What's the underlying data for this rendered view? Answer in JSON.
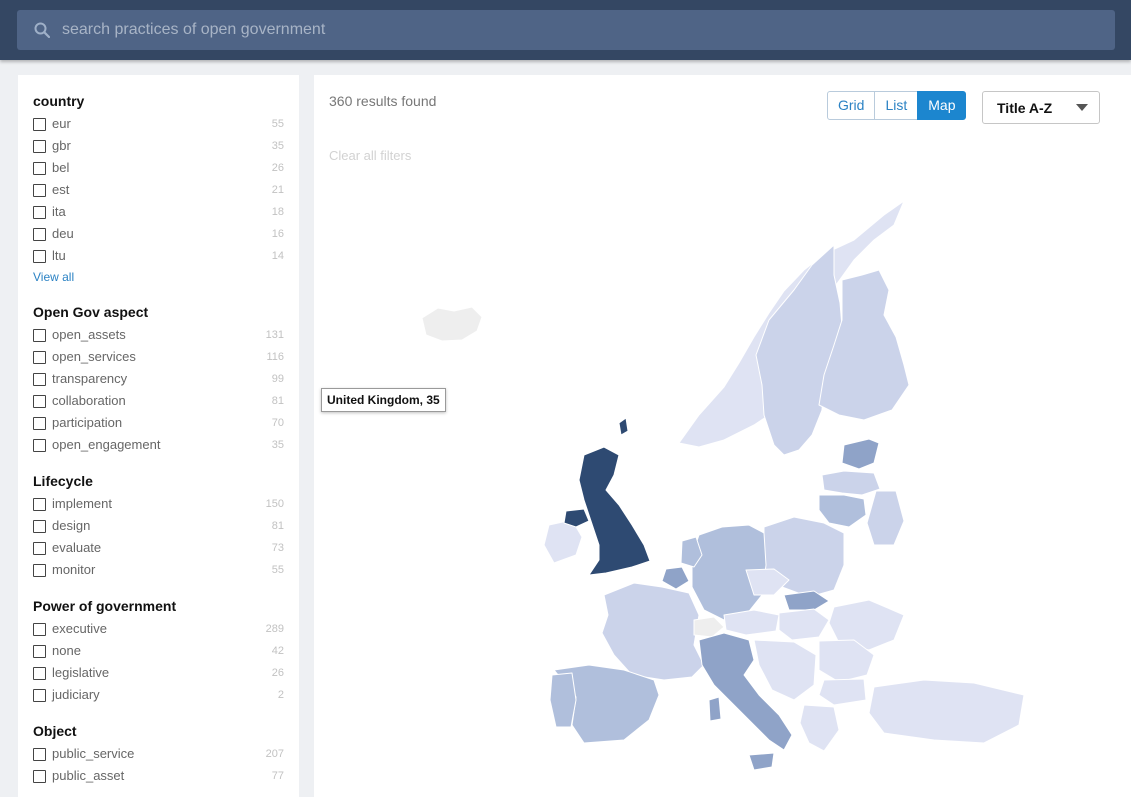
{
  "search": {
    "placeholder": "search practices of open government"
  },
  "facets": [
    {
      "title": "country",
      "items": [
        {
          "label": "eur",
          "count": "55"
        },
        {
          "label": "gbr",
          "count": "35"
        },
        {
          "label": "bel",
          "count": "26"
        },
        {
          "label": "est",
          "count": "21"
        },
        {
          "label": "ita",
          "count": "18"
        },
        {
          "label": "deu",
          "count": "16"
        },
        {
          "label": "ltu",
          "count": "14"
        }
      ],
      "view_all": "View all"
    },
    {
      "title": "Open Gov aspect",
      "items": [
        {
          "label": "open_assets",
          "count": "131"
        },
        {
          "label": "open_services",
          "count": "116"
        },
        {
          "label": "transparency",
          "count": "99"
        },
        {
          "label": "collaboration",
          "count": "81"
        },
        {
          "label": "participation",
          "count": "70"
        },
        {
          "label": "open_engagement",
          "count": "35"
        }
      ]
    },
    {
      "title": "Lifecycle",
      "items": [
        {
          "label": "implement",
          "count": "150"
        },
        {
          "label": "design",
          "count": "81"
        },
        {
          "label": "evaluate",
          "count": "73"
        },
        {
          "label": "monitor",
          "count": "55"
        }
      ]
    },
    {
      "title": "Power of government",
      "items": [
        {
          "label": "executive",
          "count": "289"
        },
        {
          "label": "none",
          "count": "42"
        },
        {
          "label": "legislative",
          "count": "26"
        },
        {
          "label": "judiciary",
          "count": "2"
        }
      ]
    },
    {
      "title": "Object",
      "items": [
        {
          "label": "public_service",
          "count": "207"
        },
        {
          "label": "public_asset",
          "count": "77"
        }
      ]
    }
  ],
  "results": {
    "count_text": "360 results found",
    "clear_filters": "Clear all filters"
  },
  "view_toggle": {
    "grid": "Grid",
    "list": "List",
    "map": "Map",
    "active": "Map"
  },
  "sort": {
    "selected": "Title A-Z"
  },
  "map": {
    "tooltip": "United Kingdom, 35",
    "colors": {
      "highlight": "#2e4a72",
      "highlight_border": "#7b2a8a",
      "high": "#8fa3c8",
      "mid": "#b0bfdc",
      "low": "#cbd3ea",
      "lower": "#dfe3f3",
      "none": "#eeeeee"
    }
  }
}
